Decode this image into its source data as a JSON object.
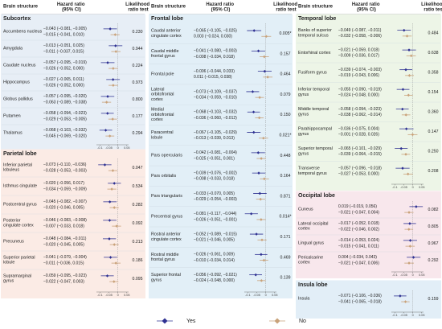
{
  "chart_data": {
    "type": "forest",
    "header": {
      "structure": "Brain structure",
      "hr": "Hazard ratio (95% CI)",
      "lrt": "Likelihood ratio test"
    },
    "xlim": [
      -0.12,
      0.06
    ],
    "xticks": [
      -0.1,
      -0.05,
      0,
      0.05
    ],
    "legend": [
      {
        "name": "Yes",
        "color": "#2e3192"
      },
      {
        "name": "No",
        "color": "#c9a27a"
      }
    ],
    "columns": [
      [
        {
          "title": "Subcortex",
          "color": "#e7eef6",
          "rows": [
            {
              "name": "Accumbens nucleus",
              "yes_label": "−0.043 (−0.081, −0.005)",
              "yes": [
                -0.043,
                -0.081,
                -0.005
              ],
              "no_label": "−0.015 (−0.041, 0.010)",
              "no": [
                -0.015,
                -0.041,
                0.01
              ],
              "p": "0.230"
            },
            {
              "name": "Amygdala",
              "yes_label": "−0.013 (−0.051, 0.025)",
              "yes": [
                -0.013,
                -0.051,
                0.025
              ],
              "no_label": "−0.011 (−0.037, 0.015)",
              "no": [
                -0.011,
                -0.037,
                0.015
              ],
              "p": "0.944"
            },
            {
              "name": "Caudate nucleus",
              "yes_label": "−0.057 (−0.095, −0.019)",
              "yes": [
                -0.057,
                -0.095,
                -0.019
              ],
              "no_label": "−0.026 (−0.052, 0.000)",
              "no": [
                -0.026,
                -0.052,
                0.0
              ],
              "p": "0.224"
            },
            {
              "name": "Hippocampus",
              "yes_label": "−0.027 (−0.065, 0.011)",
              "yes": [
                -0.027,
                -0.065,
                0.011
              ],
              "no_label": "−0.026 (−0.052, 0.000)",
              "no": [
                -0.026,
                -0.052,
                0.0
              ],
              "p": "0.973"
            },
            {
              "name": "Globus pallidus",
              "yes_label": "−0.057 (−0.095, −0.020)",
              "yes": [
                -0.057,
                -0.095,
                -0.02
              ],
              "no_label": "−0.063 (−0.089, −0.038)",
              "no": [
                -0.063,
                -0.089,
                -0.038
              ],
              "p": "0.800"
            },
            {
              "name": "Putamen",
              "yes_label": "−0.058 (−0.094, −0.023)",
              "yes": [
                -0.058,
                -0.094,
                -0.023
              ],
              "no_label": "−0.029 (−0.053, −0.005)",
              "no": [
                -0.029,
                -0.053,
                -0.005
              ],
              "p": "0.177"
            },
            {
              "name": "Thalamus",
              "yes_label": "−0.068 (−0.103, −0.032)",
              "yes": [
                -0.068,
                -0.103,
                -0.032
              ],
              "no_label": "−0.045 (−0.069, −0.020)",
              "no": [
                -0.045,
                -0.069,
                -0.02
              ],
              "p": "0.294"
            }
          ]
        },
        {
          "title": "Parietal lobe",
          "color": "#fbebe5",
          "rows": [
            {
              "name": "Inferior parietal lobuleus",
              "yes_label": "−0.073 (−0.110, −0.036)",
              "yes": [
                -0.073,
                -0.11,
                -0.036
              ],
              "no_label": "−0.028 (−0.053, −0.003)",
              "no": [
                -0.028,
                -0.053,
                -0.003
              ],
              "p": "0.047"
            },
            {
              "name": "Isthmus cingulate",
              "yes_label": "−0.020 (−0.056, 0.017)",
              "yes": [
                -0.02,
                -0.056,
                0.017
              ],
              "no_label": "−0.034 (−0.059, −0.009)",
              "no": [
                -0.034,
                -0.059,
                -0.009
              ],
              "p": "0.534"
            },
            {
              "name": "Postcentral gyrus",
              "yes_label": "−0.045 (−0.082, −0.007)",
              "yes": [
                -0.045,
                -0.082,
                -0.007
              ],
              "no_label": "−0.020 (−0.046, 0.005)",
              "no": [
                -0.02,
                -0.046,
                0.005
              ],
              "p": "0.282"
            },
            {
              "name": "Posterior cingulate cortex",
              "yes_label": "−0.046 (−0.083, −0.008)",
              "yes": [
                -0.046,
                -0.083,
                -0.008
              ],
              "no_label": "−0.007 (−0.033, 0.018)",
              "no": [
                -0.007,
                -0.033,
                0.018
              ],
              "p": "0.092"
            },
            {
              "name": "Precuneus",
              "yes_label": "−0.048 (−0.084, −0.011)",
              "yes": [
                -0.048,
                -0.084,
                -0.011
              ],
              "no_label": "−0.020 (−0.045, 0.005)",
              "no": [
                -0.02,
                -0.045,
                0.005
              ],
              "p": "0.213"
            },
            {
              "name": "Superior parietal lobule",
              "yes_label": "−0.041 (−0.079, −0.004)",
              "yes": [
                -0.041,
                -0.079,
                -0.004
              ],
              "no_label": "−0.011 (−0.036, 0.015)",
              "no": [
                -0.011,
                -0.036,
                0.015
              ],
              "p": "0.186"
            },
            {
              "name": "Supramarginal gyrus",
              "yes_label": "−0.059 (−0.095, −0.023)",
              "yes": [
                -0.059,
                -0.095,
                -0.023
              ],
              "no_label": "−0.022 (−0.047, 0.003)",
              "no": [
                -0.022,
                -0.047,
                0.003
              ],
              "p": "0.095"
            }
          ]
        }
      ],
      [
        {
          "title": "Frontal lobe",
          "color": "#e2eff7",
          "rows": [
            {
              "name": "Caudal anterior cingulate cortex",
              "yes_label": "−0.065 (−0.105, −0.025)",
              "yes": [
                -0.065,
                -0.105,
                -0.025
              ],
              "no_label": "0.003 (−0.024, 0.030)",
              "no": [
                0.003,
                -0.024,
                0.03
              ],
              "p": "0.005*"
            },
            {
              "name": "Caudal middle frontal gyrus",
              "yes_label": "−0.041 (−0.080, −0.003)",
              "yes": [
                -0.041,
                -0.08,
                -0.003
              ],
              "no_label": "−0.008 (−0.034, 0.018)",
              "no": [
                -0.008,
                -0.034,
                0.018
              ],
              "p": "0.157"
            },
            {
              "name": "Frontal pole",
              "yes_label": "−0.006 (−0.044, 0.033)",
              "yes": [
                -0.006,
                -0.044,
                0.033
              ],
              "no_label": "0.011 (−0.015, 0.038)",
              "no": [
                0.011,
                -0.015,
                0.038
              ],
              "p": "0.464"
            },
            {
              "name": "Lateral orbitofrontal cortex",
              "yes_label": "−0.073 (−0.109, −0.037)",
              "yes": [
                -0.073,
                -0.109,
                -0.037
              ],
              "no_label": "−0.034 (−0.059, −0.010)",
              "no": [
                -0.034,
                -0.059,
                -0.01
              ],
              "p": "0.079"
            },
            {
              "name": "Medial orbitofrontal cortex",
              "yes_label": "−0.068 (−0.103, −0.032)",
              "yes": [
                -0.068,
                -0.103,
                -0.032
              ],
              "no_label": "−0.036 (−0.060, −0.012)",
              "no": [
                -0.036,
                -0.06,
                -0.012
              ],
              "p": "0.150"
            },
            {
              "name": "Paracentral lobule",
              "yes_label": "−0.067 (−0.105, −0.029)",
              "yes": [
                -0.067,
                -0.105,
                -0.029
              ],
              "no_label": "−0.013 (−0.039, 0.013)",
              "no": [
                -0.013,
                -0.039,
                0.013
              ],
              "p": "0.021*"
            },
            {
              "name": "Pars opercularis",
              "yes_label": "−0.042 (−0.081, −0.004)",
              "yes": [
                -0.042,
                -0.081,
                -0.004
              ],
              "no_label": "−0.025 (−0.051, 0.001)",
              "no": [
                -0.025,
                -0.051,
                0.001
              ],
              "p": "0.448"
            },
            {
              "name": "Pars orbitalis",
              "yes_label": "−0.039 (−0.076, −0.002)",
              "yes": [
                -0.039,
                -0.076,
                -0.002
              ],
              "no_label": "−0.008 (−0.033, 0.018)",
              "no": [
                -0.008,
                -0.033,
                0.018
              ],
              "p": "0.164"
            },
            {
              "name": "Pars triangularis",
              "yes_label": "−0.033 (−0.070, 0.005)",
              "yes": [
                -0.033,
                -0.07,
                0.005
              ],
              "no_label": "−0.029 (−0.054, −0.003)",
              "no": [
                -0.029,
                -0.054,
                -0.003
              ],
              "p": "0.871"
            },
            {
              "name": "Precentral gyrus",
              "yes_label": "−0.081 (−0.117, −0.044)",
              "yes": [
                -0.081,
                -0.117,
                -0.044
              ],
              "no_label": "−0.026 (−0.051, −0.001)",
              "no": [
                -0.026,
                -0.051,
                -0.001
              ],
              "p": "0.014*"
            },
            {
              "name": "Rostral anterior cingulate cortex",
              "yes_label": "−0.052 (−0.089, −0.015)",
              "yes": [
                -0.052,
                -0.089,
                -0.015
              ],
              "no_label": "−0.021 (−0.046, 0.005)",
              "no": [
                -0.021,
                -0.046,
                0.005
              ],
              "p": "0.171"
            },
            {
              "name": "Rostral middle frontal gyrus",
              "yes_label": "−0.026 (−0.061, 0.009)",
              "yes": [
                -0.026,
                -0.061,
                0.009
              ],
              "no_label": "−0.010 (−0.034, 0.014)",
              "no": [
                -0.01,
                -0.034,
                0.014
              ],
              "p": "0.469"
            },
            {
              "name": "Superior frontal gyrus",
              "yes_label": "−0.056 (−0.092, −0.021)",
              "yes": [
                -0.056,
                -0.092,
                -0.021
              ],
              "no_label": "−0.024 (−0.048, 0.000)",
              "no": [
                -0.024,
                -0.048,
                0.0
              ],
              "p": "0.139"
            }
          ]
        }
      ],
      [
        {
          "title": "Temporal lobe",
          "color": "#edf5e7",
          "rows": [
            {
              "name": "Banks of superior temporal sulcus",
              "yes_label": "−0.049 (−0.087, −0.011)",
              "yes": [
                -0.049,
                -0.087,
                -0.011
              ],
              "no_label": "−0.032 (−0.058, −0.006)",
              "no": [
                -0.032,
                -0.058,
                -0.006
              ],
              "p": "0.484"
            },
            {
              "name": "Entorhinal cortex",
              "yes_label": "−0.021 (−0.059, 0.018)",
              "yes": [
                -0.021,
                -0.059,
                0.018
              ],
              "no_label": "−0.009 (−0.036, 0.017)",
              "no": [
                -0.009,
                -0.036,
                0.017
              ],
              "p": "0.638"
            },
            {
              "name": "Fusiform gyrus",
              "yes_label": "−0.039 (−0.074, −0.003)",
              "yes": [
                -0.039,
                -0.074,
                -0.003
              ],
              "no_label": "−0.019 (−0.043, 0.006)",
              "no": [
                -0.019,
                -0.043,
                0.006
              ],
              "p": "0.358"
            },
            {
              "name": "Inferior temporal gyrus",
              "yes_label": "−0.055 (−0.090, −0.019)",
              "yes": [
                -0.055,
                -0.09,
                -0.019
              ],
              "no_label": "−0.024 (−0.048, 0.000)",
              "no": [
                -0.024,
                -0.048,
                0.0
              ],
              "p": "0.154"
            },
            {
              "name": "Middle temporal gyrus",
              "yes_label": "−0.058 (−0.094, −0.023)",
              "yes": [
                -0.058,
                -0.094,
                -0.023
              ],
              "no_label": "−0.038 (−0.062, −0.014)",
              "no": [
                -0.038,
                -0.062,
                -0.014
              ],
              "p": "0.360"
            },
            {
              "name": "Parahippocampal gyrus",
              "yes_label": "−0.036 (−0.075, 0.004)",
              "yes": [
                -0.036,
                -0.075,
                0.004
              ],
              "no_label": "−0.001 (−0.028, 0.026)",
              "no": [
                -0.001,
                -0.028,
                0.026
              ],
              "p": "0.147"
            },
            {
              "name": "Superior temporal gyrus",
              "yes_label": "−0.065 (−0.101, −0.029)",
              "yes": [
                -0.065,
                -0.101,
                -0.029
              ],
              "no_label": "−0.039 (−0.064, −0.015)",
              "no": [
                -0.039,
                -0.064,
                -0.015
              ],
              "p": "0.250"
            },
            {
              "name": "Transverse temporal gyrus",
              "yes_label": "−0.057 (−0.096, −0.018)",
              "yes": [
                -0.057,
                -0.096,
                -0.018
              ],
              "no_label": "−0.027 (−0.053, 0.000)",
              "no": [
                -0.027,
                -0.053,
                0.0
              ],
              "p": "0.208"
            }
          ]
        },
        {
          "title": "Occipital lobe",
          "color": "#f8e7ec",
          "rows": [
            {
              "name": "Cuneus",
              "yes_label": "0.019 (−0.019, 0.056)",
              "yes": [
                0.019,
                -0.019,
                0.056
              ],
              "no_label": "−0.021 (−0.047, 0.004)",
              "no": [
                -0.021,
                -0.047,
                0.004
              ],
              "p": "0.082"
            },
            {
              "name": "Lateral occipital cortex",
              "yes_label": "−0.017 (−0.052, 0.018)",
              "yes": [
                -0.017,
                -0.052,
                0.018
              ],
              "no_label": "−0.022 (−0.046, 0.002)",
              "no": [
                -0.022,
                -0.046,
                0.002
              ],
              "p": "0.805"
            },
            {
              "name": "Lingual gyrus",
              "yes_label": "−0.014 (−0.053, 0.024)",
              "yes": [
                -0.014,
                -0.053,
                0.024
              ],
              "no_label": "−0.015 (−0.041, 0.011)",
              "no": [
                -0.015,
                -0.041,
                0.011
              ],
              "p": "0.967"
            },
            {
              "name": "Pericalcarine cortex",
              "yes_label": "0.004 (−0.034, 0.043)",
              "yes": [
                0.004,
                -0.034,
                0.043
              ],
              "no_label": "−0.021 (−0.047, 0.006)",
              "no": [
                -0.021,
                -0.047,
                0.006
              ],
              "p": "0.292"
            }
          ]
        },
        {
          "title": "Insula lobe",
          "color": "#e2eef7",
          "rows": [
            {
              "name": "Insula",
              "yes_label": "−0.071 (−0.106, −0.036)",
              "yes": [
                -0.071,
                -0.106,
                -0.036
              ],
              "no_label": "−0.041 (−0.065, −0.018)",
              "no": [
                -0.041,
                -0.065,
                -0.018
              ],
              "p": "0.159"
            }
          ]
        }
      ]
    ]
  }
}
